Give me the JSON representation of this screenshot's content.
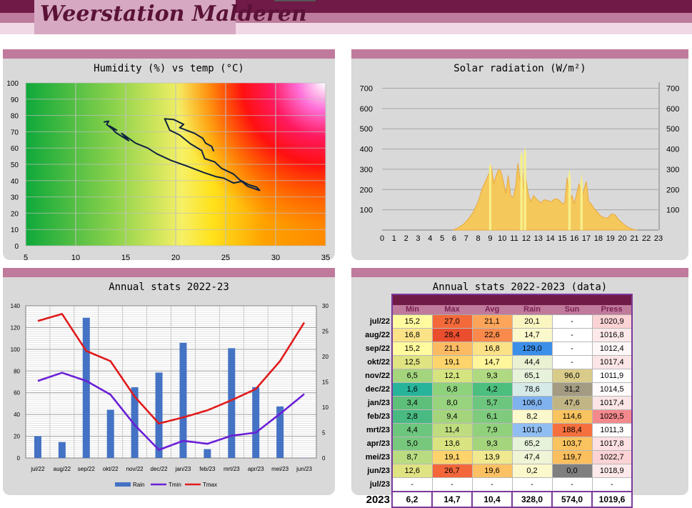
{
  "site_title": "Weerstation Malderen",
  "panels": {
    "humidity": {
      "title": "Humidity (%) vs temp (°C)",
      "chart_data": {
        "type": "line",
        "xlim": [
          5,
          35
        ],
        "ylim": [
          0,
          100
        ],
        "x_ticks": [
          5,
          10,
          15,
          20,
          25,
          30,
          35
        ],
        "y_ticks": [
          0,
          10,
          20,
          30,
          40,
          50,
          60,
          70,
          80,
          90,
          100
        ],
        "grid": true,
        "x": [
          12.8,
          13.3,
          13.1,
          13.6,
          14.1,
          13.4,
          14.0,
          15.3,
          14.6,
          16.0,
          17.2,
          18.1,
          19.5,
          21.1,
          22.8,
          24.0,
          24.8,
          25.8,
          26.6,
          27.2,
          27.9,
          28.4,
          28.1,
          27.3,
          26.4,
          25.8,
          24.6,
          23.9,
          22.9,
          22.6,
          21.5,
          20.4,
          19.4,
          18.9,
          19.8,
          20.8,
          20.4,
          21.9,
          22.7,
          23.0,
          23.6,
          23.8
        ],
        "y": [
          76.0,
          76.5,
          74.5,
          72.0,
          71.0,
          73.5,
          69.5,
          64.5,
          69.0,
          63.0,
          60.0,
          56.5,
          52.5,
          49.0,
          45.0,
          42.5,
          41.5,
          38.5,
          39.5,
          36.5,
          35.0,
          34.0,
          36.0,
          37.5,
          40.5,
          44.0,
          47.5,
          51.5,
          53.5,
          58.5,
          62.5,
          68.0,
          71.0,
          78.0,
          77.5,
          74.5,
          72.5,
          69.0,
          66.0,
          63.0,
          61.0,
          58.0
        ],
        "color_map": "green-yellow-red-magenta-white"
      }
    },
    "solar": {
      "title": "Solar radiation (W/m²)",
      "chart_data": {
        "type": "area",
        "xlim": [
          0,
          23
        ],
        "ylim": [
          0,
          730
        ],
        "x_ticks": [
          0,
          1,
          2,
          3,
          4,
          5,
          6,
          7,
          8,
          9,
          10,
          11,
          12,
          13,
          14,
          15,
          16,
          17,
          18,
          19,
          20,
          21,
          22,
          23
        ],
        "y_ticks": [
          100,
          200,
          300,
          400,
          500,
          600,
          700
        ],
        "grid": true,
        "series": [
          {
            "x": [
              5.9,
              6.3,
              6.8,
              7.2,
              7.6,
              8.0,
              8.3,
              8.6,
              8.9,
              9.1,
              9.3,
              9.5,
              9.7,
              9.9,
              10.1,
              10.3,
              10.5,
              10.7,
              10.9,
              11.1,
              11.3,
              11.5,
              11.6,
              11.8,
              11.9,
              12.0,
              12.2,
              12.4,
              12.6,
              12.9,
              13.2,
              13.5,
              13.8,
              14.1,
              14.4,
              14.7,
              15.0,
              15.2,
              15.4,
              15.6,
              15.8,
              16.0,
              16.2,
              16.4,
              16.6,
              16.8,
              17.0,
              17.2,
              17.4,
              17.6,
              17.9,
              18.2,
              18.5,
              18.8,
              19.1,
              19.4,
              19.7,
              20.0,
              20.3,
              20.6,
              20.9,
              21.2
            ],
            "y": [
              0,
              10,
              30,
              55,
              90,
              140,
              200,
              240,
              280,
              310,
              230,
              270,
              300,
              290,
              240,
              180,
              270,
              170,
              160,
              210,
              330,
              240,
              360,
              200,
              330,
              240,
              170,
              140,
              170,
              150,
              135,
              150,
              145,
              140,
              155,
              150,
              130,
              135,
              260,
              150,
              170,
              130,
              180,
              230,
              150,
              200,
              240,
              140,
              130,
              110,
              90,
              70,
              60,
              60,
              80,
              75,
              50,
              35,
              20,
              10,
              3,
              0
            ],
            "color": "#f5c85c"
          },
          {
            "x": [
              8.9,
              9.0,
              9.1,
              11.5,
              11.6,
              11.7,
              11.8,
              11.9,
              12.0,
              15.5,
              15.6,
              15.7,
              16.5,
              16.6,
              16.7
            ],
            "y": [
              310,
              330,
              310,
              360,
              390,
              360,
              380,
              410,
              380,
              260,
              300,
              260,
              230,
              280,
              230
            ],
            "color": "#f7ef8a"
          }
        ]
      }
    },
    "annual_chart": {
      "title": "Annual stats 2022-23",
      "chart_data": {
        "type": "bar",
        "categories": [
          "jul/22",
          "aug/22",
          "sep/22",
          "okt/22",
          "nov/22",
          "dec/22",
          "jan/23",
          "feb/23",
          "mrt/23",
          "apr/23",
          "mei/23",
          "jun/23"
        ],
        "y_ticks_left": [
          0,
          20,
          40,
          60,
          80,
          100,
          120,
          140
        ],
        "y_ticks_right": [
          0,
          5,
          10,
          15,
          20,
          25,
          30
        ],
        "ylim_left": [
          0,
          140
        ],
        "ylim_right": [
          0,
          30
        ],
        "grid": true,
        "legend_position": "bottom",
        "series": [
          {
            "name": "Rain",
            "type": "bar",
            "axis": "left",
            "color": "#4472c4",
            "values": [
              20.1,
              14.7,
              129.0,
              44.4,
              65.1,
              78.6,
              106.0,
              8.2,
              101.0,
              65.2,
              47.4,
              0.2
            ]
          },
          {
            "name": "Tmin",
            "type": "line",
            "axis": "right",
            "color": "#6a1fd6",
            "values": [
              15.2,
              16.8,
              15.2,
              12.5,
              6.5,
              1.6,
              3.4,
              2.8,
              4.4,
              5.0,
              8.7,
              12.6
            ]
          },
          {
            "name": "Tmax",
            "type": "line",
            "axis": "right",
            "color": "#e01b1b",
            "values": [
              27.0,
              28.4,
              21.1,
              19.1,
              12.1,
              6.8,
              8.0,
              9.4,
              11.4,
              13.6,
              19.1,
              26.7
            ]
          }
        ]
      }
    },
    "annual_table": {
      "title": "Annual stats 2022-2023 (data)",
      "chart_data": {
        "type": "table",
        "columns": [
          "Min",
          "Max",
          "Avg",
          "Rain",
          "Sun",
          "Press"
        ],
        "rows": [
          {
            "label": "jul/22",
            "cells": [
              "15,2",
              "27,0",
              "21,1",
              "20,1",
              "-",
              "1020,9"
            ]
          },
          {
            "label": "aug/22",
            "cells": [
              "16,8",
              "28,4",
              "22,6",
              "14,7",
              "-",
              "1016,8"
            ]
          },
          {
            "label": "sep/22",
            "cells": [
              "15,2",
              "21,1",
              "16,8",
              "129,0",
              "-",
              "1012,4"
            ]
          },
          {
            "label": "okt/22",
            "cells": [
              "12,5",
              "19,1",
              "14,7",
              "44,4",
              "-",
              "1017,4"
            ]
          },
          {
            "label": "nov/22",
            "cells": [
              "6,5",
              "12,1",
              "9,3",
              "65,1",
              "96,0",
              "1011,9"
            ]
          },
          {
            "label": "dec/22",
            "cells": [
              "1,6",
              "6,8",
              "4,2",
              "78,6",
              "31,2",
              "1014,5"
            ]
          },
          {
            "label": "jan/23",
            "cells": [
              "3,4",
              "8,0",
              "5,7",
              "106,0",
              "47,6",
              "1017,4"
            ]
          },
          {
            "label": "feb/23",
            "cells": [
              "2,8",
              "9,4",
              "6,1",
              "8,2",
              "114,6",
              "1029,5"
            ]
          },
          {
            "label": "mrt/23",
            "cells": [
              "4,4",
              "11,4",
              "7,9",
              "101,0",
              "188,4",
              "1011,3"
            ]
          },
          {
            "label": "apr/23",
            "cells": [
              "5,0",
              "13,6",
              "9,3",
              "65,2",
              "103,7",
              "1017,8"
            ]
          },
          {
            "label": "mei/23",
            "cells": [
              "8,7",
              "19,1",
              "13,9",
              "47,4",
              "119,7",
              "1022,7"
            ]
          },
          {
            "label": "jun/23",
            "cells": [
              "12,6",
              "26,7",
              "19,6",
              "0,2",
              "0,0",
              "1018,9"
            ]
          },
          {
            "label": "jul/23",
            "cells": [
              "-",
              "-",
              "-",
              "-",
              "-",
              "-"
            ]
          }
        ],
        "cell_colors": [
          [
            "#fffb9e",
            "#f4693a",
            "#fca55a",
            "#fbf5c0",
            "#ffffff",
            "#fbd3d5"
          ],
          [
            "#fbe287",
            "#ea4e2e",
            "#f98a4c",
            "#fbf8cc",
            "#ffffff",
            "#fde9ea"
          ],
          [
            "#fffb9e",
            "#fcbb63",
            "#fbe287",
            "#3c8fe8",
            "#ffffff",
            "#fdf7f8"
          ],
          [
            "#dfe382",
            "#fdd36b",
            "#fff59a",
            "#e9f1d2",
            "#ffffff",
            "#fce5e6"
          ],
          [
            "#a4d57d",
            "#d5e47f",
            "#b0da82",
            "#e6f2da",
            "#d9cc8a",
            "#ffffff"
          ],
          [
            "#27b49b",
            "#8fd27c",
            "#4cbf7e",
            "#d6ebe8",
            "#a39b82",
            "#fefafb"
          ],
          [
            "#5ebf7a",
            "#98d47e",
            "#6dc67d",
            "#7fb2ee",
            "#c1b585",
            "#fce5e6"
          ],
          [
            "#48ba82",
            "#a4d57d",
            "#7ecb7d",
            "#fbf8cc",
            "#f9c35f",
            "#f3898d"
          ],
          [
            "#6dc67d",
            "#bfdd7f",
            "#92d17c",
            "#90bef3",
            "#f5703e",
            "#ffffff"
          ],
          [
            "#77c87c",
            "#d9e480",
            "#a4d57d",
            "#e6f2da",
            "#f9c35f",
            "#fce0e2"
          ],
          [
            "#b9dc81",
            "#fdd36b",
            "#f0e98f",
            "#eef4d5",
            "#fbbf5e",
            "#fbd3d5"
          ],
          [
            "#e0e382",
            "#f3673b",
            "#fcc163",
            "#fbf8cc",
            "#7f7f7f",
            "#fde9ea"
          ],
          [
            "#ffffff",
            "#ffffff",
            "#ffffff",
            "#ffffff",
            "#ffffff",
            "#ffffff"
          ]
        ],
        "totals_label": "2023",
        "totals": [
          "6,2",
          "14,7",
          "10,4",
          "328,0",
          "574,0",
          "1019,6"
        ]
      }
    }
  }
}
